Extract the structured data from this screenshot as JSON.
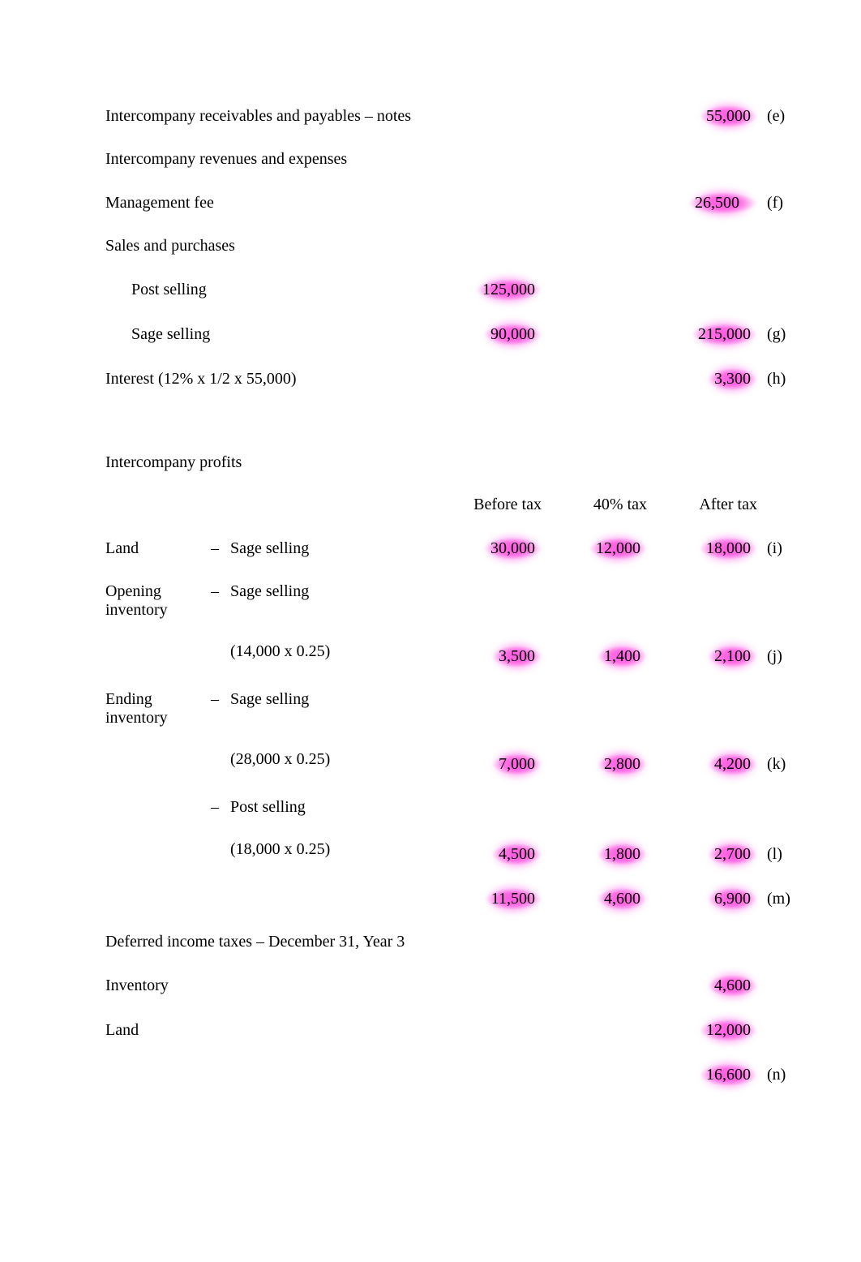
{
  "colors": {
    "background": "#ffffff",
    "text": "#000000",
    "highlight": "rgba(255,0,200,0.45)"
  },
  "typography": {
    "font_family": "Times New Roman",
    "font_size_pt": 15
  },
  "section1": {
    "rows": [
      {
        "label": "Intercompany receivables and payables – notes",
        "v1": "",
        "v2": "55,000",
        "ref": "(e)",
        "hl_v2": true
      },
      {
        "label": "Intercompany revenues and expenses",
        "v1": "",
        "v2": "",
        "ref": ""
      },
      {
        "label": "Management fee",
        "v1": "",
        "v2": "26,500",
        "ref": "(f)",
        "hl_v2": true,
        "hl_wide": true
      },
      {
        "label": "Sales and purchases",
        "v1": "",
        "v2": "",
        "ref": ""
      },
      {
        "label": "Post selling",
        "indent": true,
        "v1": "125,000",
        "v2": "",
        "ref": "",
        "hl_v1": true
      },
      {
        "label": "Sage selling",
        "indent": true,
        "v1": "90,000",
        "v2": "215,000",
        "ref": "(g)",
        "hl_v1": true,
        "hl_v2": true
      },
      {
        "label": "Interest (12% x 1/2 x 55,000)",
        "v1": "",
        "v2": "3,300",
        "ref": "(h)",
        "hl_v2": true
      }
    ]
  },
  "section2": {
    "title": "Intercompany profits",
    "headers": {
      "c1": "Before tax",
      "c2": "40% tax",
      "c3": "After tax"
    },
    "rows": [
      {
        "l1": "Land",
        "dash": "–",
        "l2": "Sage selling",
        "c1": "30,000",
        "c2": "12,000",
        "c3": "18,000",
        "ref": "(i)",
        "hl": true
      },
      {
        "l1": "Opening inventory",
        "dash": "–",
        "l2": "Sage selling",
        "c1": "",
        "c2": "",
        "c3": "",
        "ref": ""
      },
      {
        "l1": "",
        "dash": "",
        "l2": "(14,000 x 0.25)",
        "c1": "3,500",
        "c2": "1,400",
        "c3": "2,100",
        "ref": "(j)",
        "hl": true
      },
      {
        "l1": "Ending inventory",
        "dash": "–",
        "l2": "Sage selling",
        "c1": "",
        "c2": "",
        "c3": "",
        "ref": ""
      },
      {
        "l1": "",
        "dash": "",
        "l2": "(28,000 x 0.25)",
        "c1": "7,000",
        "c2": "2,800",
        "c3": "4,200",
        "ref": "(k)",
        "hl": true
      },
      {
        "l1": "",
        "dash": "–",
        "l2": "Post selling",
        "c1": "",
        "c2": "",
        "c3": "",
        "ref": ""
      },
      {
        "l1": "",
        "dash": "",
        "l2": "(18,000 x 0.25)",
        "c1": "4,500",
        "c2": "1,800",
        "c3": "2,700",
        "ref": "(l)",
        "hl": true
      },
      {
        "l1": "",
        "dash": "",
        "l2": "",
        "c1": "11,500",
        "c2": "4,600",
        "c3": "6,900",
        "ref": "(m)",
        "hl": true
      }
    ]
  },
  "section3": {
    "title": "Deferred income taxes – December 31, Year 3",
    "rows": [
      {
        "label": "Inventory",
        "v": "4,600",
        "ref": "",
        "hl": true
      },
      {
        "label": "Land",
        "v": "12,000",
        "ref": "",
        "hl": true
      },
      {
        "label": "",
        "v": "16,600",
        "ref": "(n)",
        "hl": true
      }
    ]
  }
}
